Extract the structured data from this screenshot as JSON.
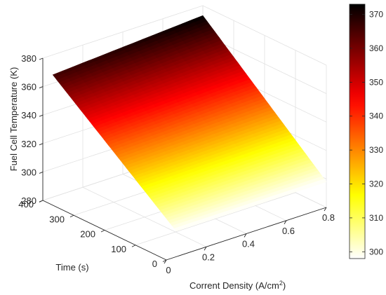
{
  "chart_data": {
    "type": "surface",
    "title": "",
    "xlabel": "Corrent Density (A/cm",
    "xlabel_sup": "2",
    "xlabel_close": ")",
    "ylabel": "Time (s)",
    "zlabel": "Fuel Cell Temperature (K)",
    "x_ticks": [
      {
        "value": 0,
        "label": "0"
      },
      {
        "value": 0.2,
        "label": "0.2"
      },
      {
        "value": 0.4,
        "label": "0.4"
      },
      {
        "value": 0.6,
        "label": "0.6"
      },
      {
        "value": 0.8,
        "label": "0.8"
      }
    ],
    "y_ticks": [
      {
        "value": 0,
        "label": "0"
      },
      {
        "value": 100,
        "label": "100"
      },
      {
        "value": 200,
        "label": "200"
      },
      {
        "value": 300,
        "label": "300"
      },
      {
        "value": 400,
        "label": "400"
      }
    ],
    "z_ticks": [
      {
        "value": 280,
        "label": "280"
      },
      {
        "value": 300,
        "label": "300"
      },
      {
        "value": 320,
        "label": "320"
      },
      {
        "value": 340,
        "label": "340"
      },
      {
        "value": 360,
        "label": "360"
      },
      {
        "value": 380,
        "label": "380"
      }
    ],
    "xlim": [
      0,
      0.8
    ],
    "ylim": [
      0,
      400
    ],
    "zlim": [
      280,
      380
    ],
    "surface": {
      "x_range": [
        0.05,
        0.8
      ],
      "y_range": [
        0,
        400
      ],
      "corners": [
        {
          "x": 0.05,
          "y": 400,
          "z": 366
        },
        {
          "x": 0.8,
          "y": 400,
          "z": 373
        },
        {
          "x": 0.8,
          "y": 0,
          "z": 298
        },
        {
          "x": 0.05,
          "y": 0,
          "z": 298
        }
      ],
      "description_variable": "temperature rises with time, nearly independent of current density"
    },
    "colorbar": {
      "colormap": "hot",
      "range": [
        298,
        373
      ],
      "ticks": [
        {
          "value": 300,
          "label": "300"
        },
        {
          "value": 310,
          "label": "310"
        },
        {
          "value": 320,
          "label": "320"
        },
        {
          "value": 330,
          "label": "330"
        },
        {
          "value": 340,
          "label": "340"
        },
        {
          "value": 350,
          "label": "350"
        },
        {
          "value": 360,
          "label": "360"
        },
        {
          "value": 370,
          "label": "370"
        }
      ]
    },
    "grid": true
  }
}
